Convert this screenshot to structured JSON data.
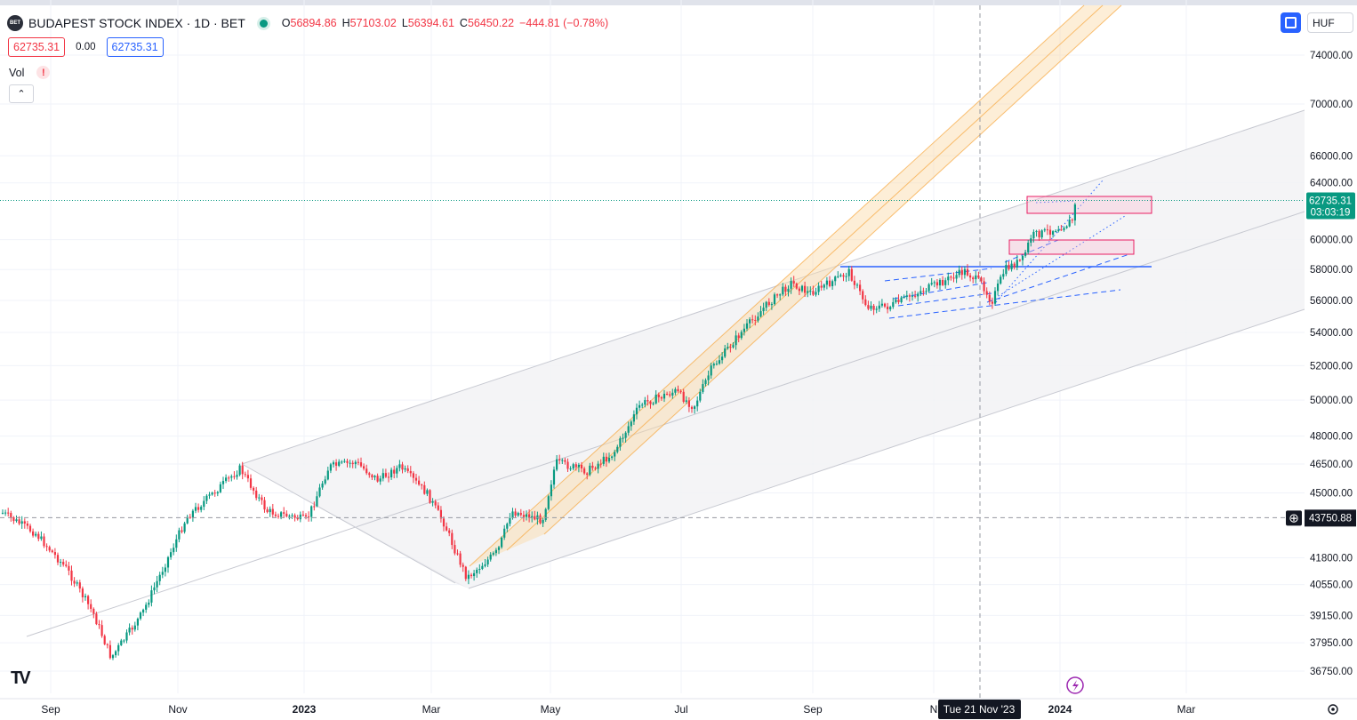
{
  "header": {
    "symbol_logo": "BET",
    "title": "BUDAPEST STOCK INDEX · 1D · BET",
    "ohlc": {
      "o_label": "O",
      "o": "56894.86",
      "h_label": "H",
      "h": "57103.02",
      "l_label": "L",
      "l": "56394.61",
      "c_label": "C",
      "c": "56450.22",
      "change": "−444.81 (−0.78%)"
    },
    "bid": "62735.31",
    "spread": "0.00",
    "ask": "62735.31",
    "vol_label": "Vol",
    "vol_warning": "!",
    "currency": "HUF"
  },
  "chart_data": {
    "type": "candlestick",
    "price_ticks": [
      "74000.00",
      "70000.00",
      "66000.00",
      "64000.00",
      "60000.00",
      "58000.00",
      "56000.00",
      "54000.00",
      "52000.00",
      "50000.00",
      "48000.00",
      "46500.00",
      "45000.00",
      "41800.00",
      "40550.00",
      "39150.00",
      "37950.00",
      "36750.00"
    ],
    "time_ticks": [
      "Sep",
      "Nov",
      "2023",
      "Mar",
      "May",
      "Jul",
      "Sep",
      "N",
      "2024",
      "Mar"
    ],
    "last_price": "62735.31",
    "countdown": "03:03:19",
    "crosshair_price": "43750.88",
    "crosshair_date": "Tue 21 Nov '23",
    "colors": {
      "up": "#089981",
      "down": "#f23645",
      "channel": "#b2b5be",
      "orange_channel": "#f7a53b",
      "hline": "#2962ff",
      "zone": "#e91e63"
    },
    "log_scale": true
  }
}
